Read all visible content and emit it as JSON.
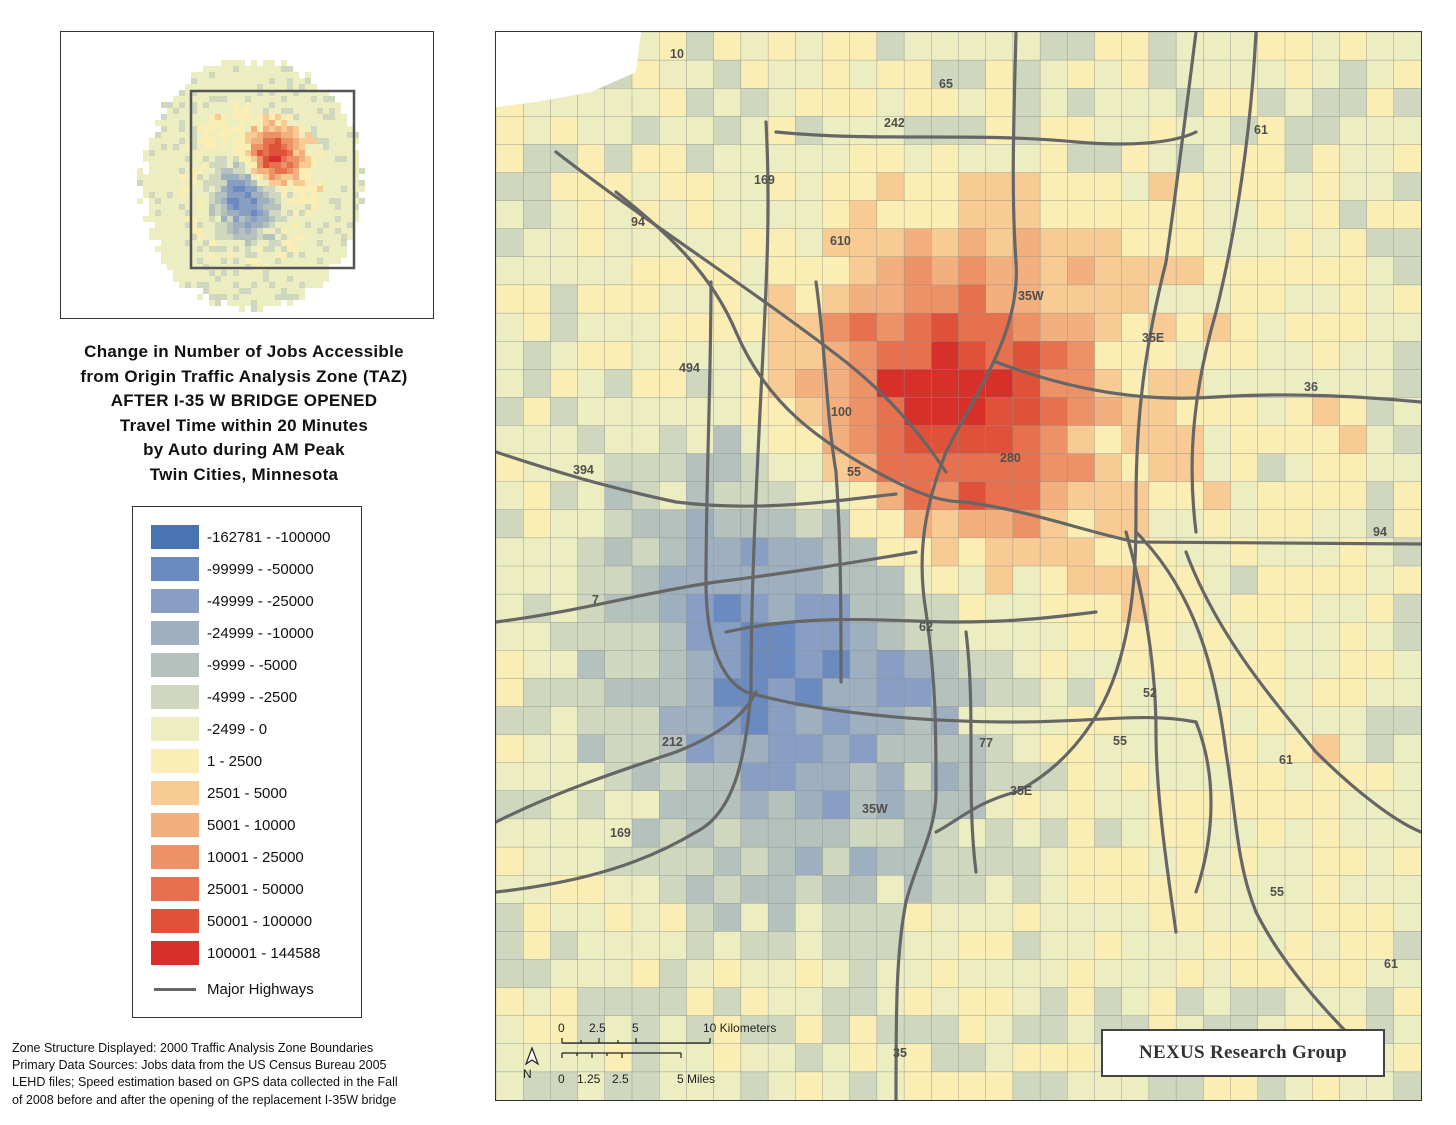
{
  "title_lines": [
    "Change in Number of Jobs Accessible",
    "from Origin Traffic Analysis Zone (TAZ)",
    "AFTER I-35 W BRIDGE OPENED",
    "Travel Time within 20 Minutes",
    "by Auto during AM Peak",
    "Twin Cities, Minnesota"
  ],
  "legend": {
    "classes": [
      {
        "label": "-162781 - -100000",
        "color": "#4a73b3"
      },
      {
        "label": "-99999 - -50000",
        "color": "#6a8ac0"
      },
      {
        "label": "-49999 - -25000",
        "color": "#889fc3"
      },
      {
        "label": "-24999 - -10000",
        "color": "#9eb0c0"
      },
      {
        "label": "-9999 - -5000",
        "color": "#b4c1bc"
      },
      {
        "label": "-4999 - -2500",
        "color": "#cfd8be"
      },
      {
        "label": "-2499 - 0",
        "color": "#ecedc0"
      },
      {
        "label": "1 - 2500",
        "color": "#fbeeb4"
      },
      {
        "label": "2501 - 5000",
        "color": "#f8cb94"
      },
      {
        "label": "5001 - 10000",
        "color": "#f3b07f"
      },
      {
        "label": "10001 - 25000",
        "color": "#ed9266"
      },
      {
        "label": "25001 - 50000",
        "color": "#e7704e"
      },
      {
        "label": "50001 - 100000",
        "color": "#df5239"
      },
      {
        "label": "100001 - 144588",
        "color": "#d7302b"
      }
    ],
    "highway_label": "Major Highways",
    "highway_color": "#666666"
  },
  "sources": [
    "Zone Structure Displayed: 2000 Traffic Analysis Zone Boundaries",
    "Primary Data Sources: Jobs data from the US Census Bureau 2005",
    "LEHD files; Speed estimation based on GPS data collected in the Fall",
    "of 2008 before and after the opening of the replacement I-35W bridge"
  ],
  "highway_labels": [
    "10",
    "65",
    "242",
    "61",
    "169",
    "94",
    "610",
    "35W",
    "35E",
    "494",
    "36",
    "100",
    "394",
    "55",
    "280",
    "94",
    "7",
    "62",
    "52",
    "212",
    "77",
    "55",
    "61",
    "169",
    "35W",
    "35E",
    "55",
    "61",
    "35"
  ],
  "scale_bar": {
    "km_ticks": [
      "0",
      "2.5",
      "5"
    ],
    "km_end": "10 Kilometers",
    "mi_ticks": [
      "0",
      "1.25",
      "2.5"
    ],
    "mi_end": "5 Miles",
    "north_label": "N"
  },
  "brand": "NEXUS Research Group"
}
